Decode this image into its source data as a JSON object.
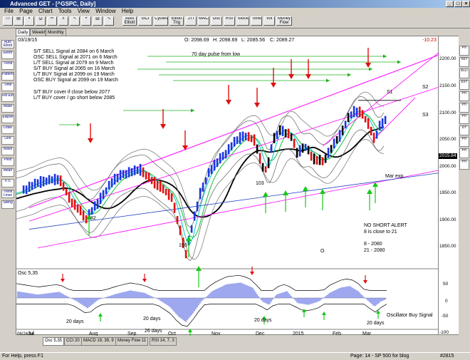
{
  "window": {
    "title": "Advanced GET - [^GSPC, Daily]",
    "controls": [
      "_",
      "□",
      "×"
    ]
  },
  "menu": [
    "File",
    "Page",
    "Chart",
    "Tools",
    "View",
    "Window",
    "Help"
  ],
  "toolbar": {
    "buttons": [
      "Auto Elliott",
      "GCI",
      "Cycles",
      "Elliott Trig",
      "JTI",
      "MACD",
      "Osc",
      "RSI",
      "Stock",
      "Time",
      "Vol",
      "Money Flow"
    ]
  },
  "view_tabs": [
    "Daily",
    "Weekly",
    "Monthly"
  ],
  "left_tools": [
    "Auto Elliott",
    "Elliott",
    "Trend",
    "Pattern",
    "Time",
    "Fib Ext",
    "Make",
    "Ellipse",
    "Draw",
    "Line",
    "Wave",
    "Pivot",
    "Mean",
    "XTL",
    "Trend Lines",
    "Swing"
  ],
  "right_tools": [
    "PTI",
    "RET",
    "ELLI",
    "EXT",
    "PTI",
    "PTI",
    "PTI",
    "ET",
    "PTI",
    "PTI",
    "PTI"
  ],
  "header": {
    "date": "03/19/15",
    "open": "O: 2098.69",
    "high": "H: 2098.69",
    "low": "L: 2085.56",
    "close": "C: 2089.27",
    "change": "-10.23"
  },
  "signals": [
    "S/T SELL Signal at 2084 on 6 March",
    "OSC SELL Signal at 2071 on 6 March",
    "L/T SELL Signal at 2079 on 9 March",
    "S/T BUY Signal at 2065 on 16 March",
    "L/T BUY Signal at 2099 on 19 March",
    "OSC BUY Signal at 2099 on 19 March"
  ],
  "cover_notes": [
    "S/T BUY cover if close below 2077",
    "L/T BUY cover / go short below 2085"
  ],
  "annotations": {
    "pulse": "70 day pulse from low",
    "s1": "S1",
    "s2": "S2",
    "s3": "S3",
    "mar_exp": "Mar exp.",
    "alert1": "NO SHORT ALERT",
    "alert2": "8 is close to 21",
    "ma8": "8   - 2080",
    "ma21": "21 - 2080",
    "low82": "82",
    "low103": "103",
    "low190": "190",
    "o": "O",
    "osc_buy": "Oscillator Buy Signal",
    "days": [
      "20 days",
      "20 days",
      "26 days",
      "20 days",
      "20 days"
    ],
    "price_label": "2015.84"
  },
  "price_axis": [
    "2200.00",
    "2150.00",
    "2100.00",
    "2050.00",
    "2000.00",
    "1950.00",
    "1900.00",
    "1850.00"
  ],
  "osc_axis": [
    "50",
    "0",
    "-50",
    "-100"
  ],
  "osc_title": "Osc 5,35",
  "time_axis": [
    "Jul",
    "Aug",
    "Sep",
    "Oct",
    "Nov",
    "Dec",
    "2015",
    "Feb",
    "Mar"
  ],
  "time_axis_left": "06/24/14",
  "bottom_tabs": [
    "Osc 5,35",
    "CCI 20",
    "MACD 19, 39, 9",
    "Money Flow 11",
    "RSI 14, 7, 3"
  ],
  "status": {
    "left": "For Help, press F1",
    "center": "Page: 14 - SP 500 for blog",
    "right": "#2815"
  },
  "colors": {
    "up_bar": "#1a35e0",
    "down_bar": "#e01010",
    "neutral_bar": "#000000",
    "arrow_down": "#e01010",
    "arrow_up": "#18c818",
    "band": "#ff00ff",
    "osc": "#3c50dc"
  }
}
